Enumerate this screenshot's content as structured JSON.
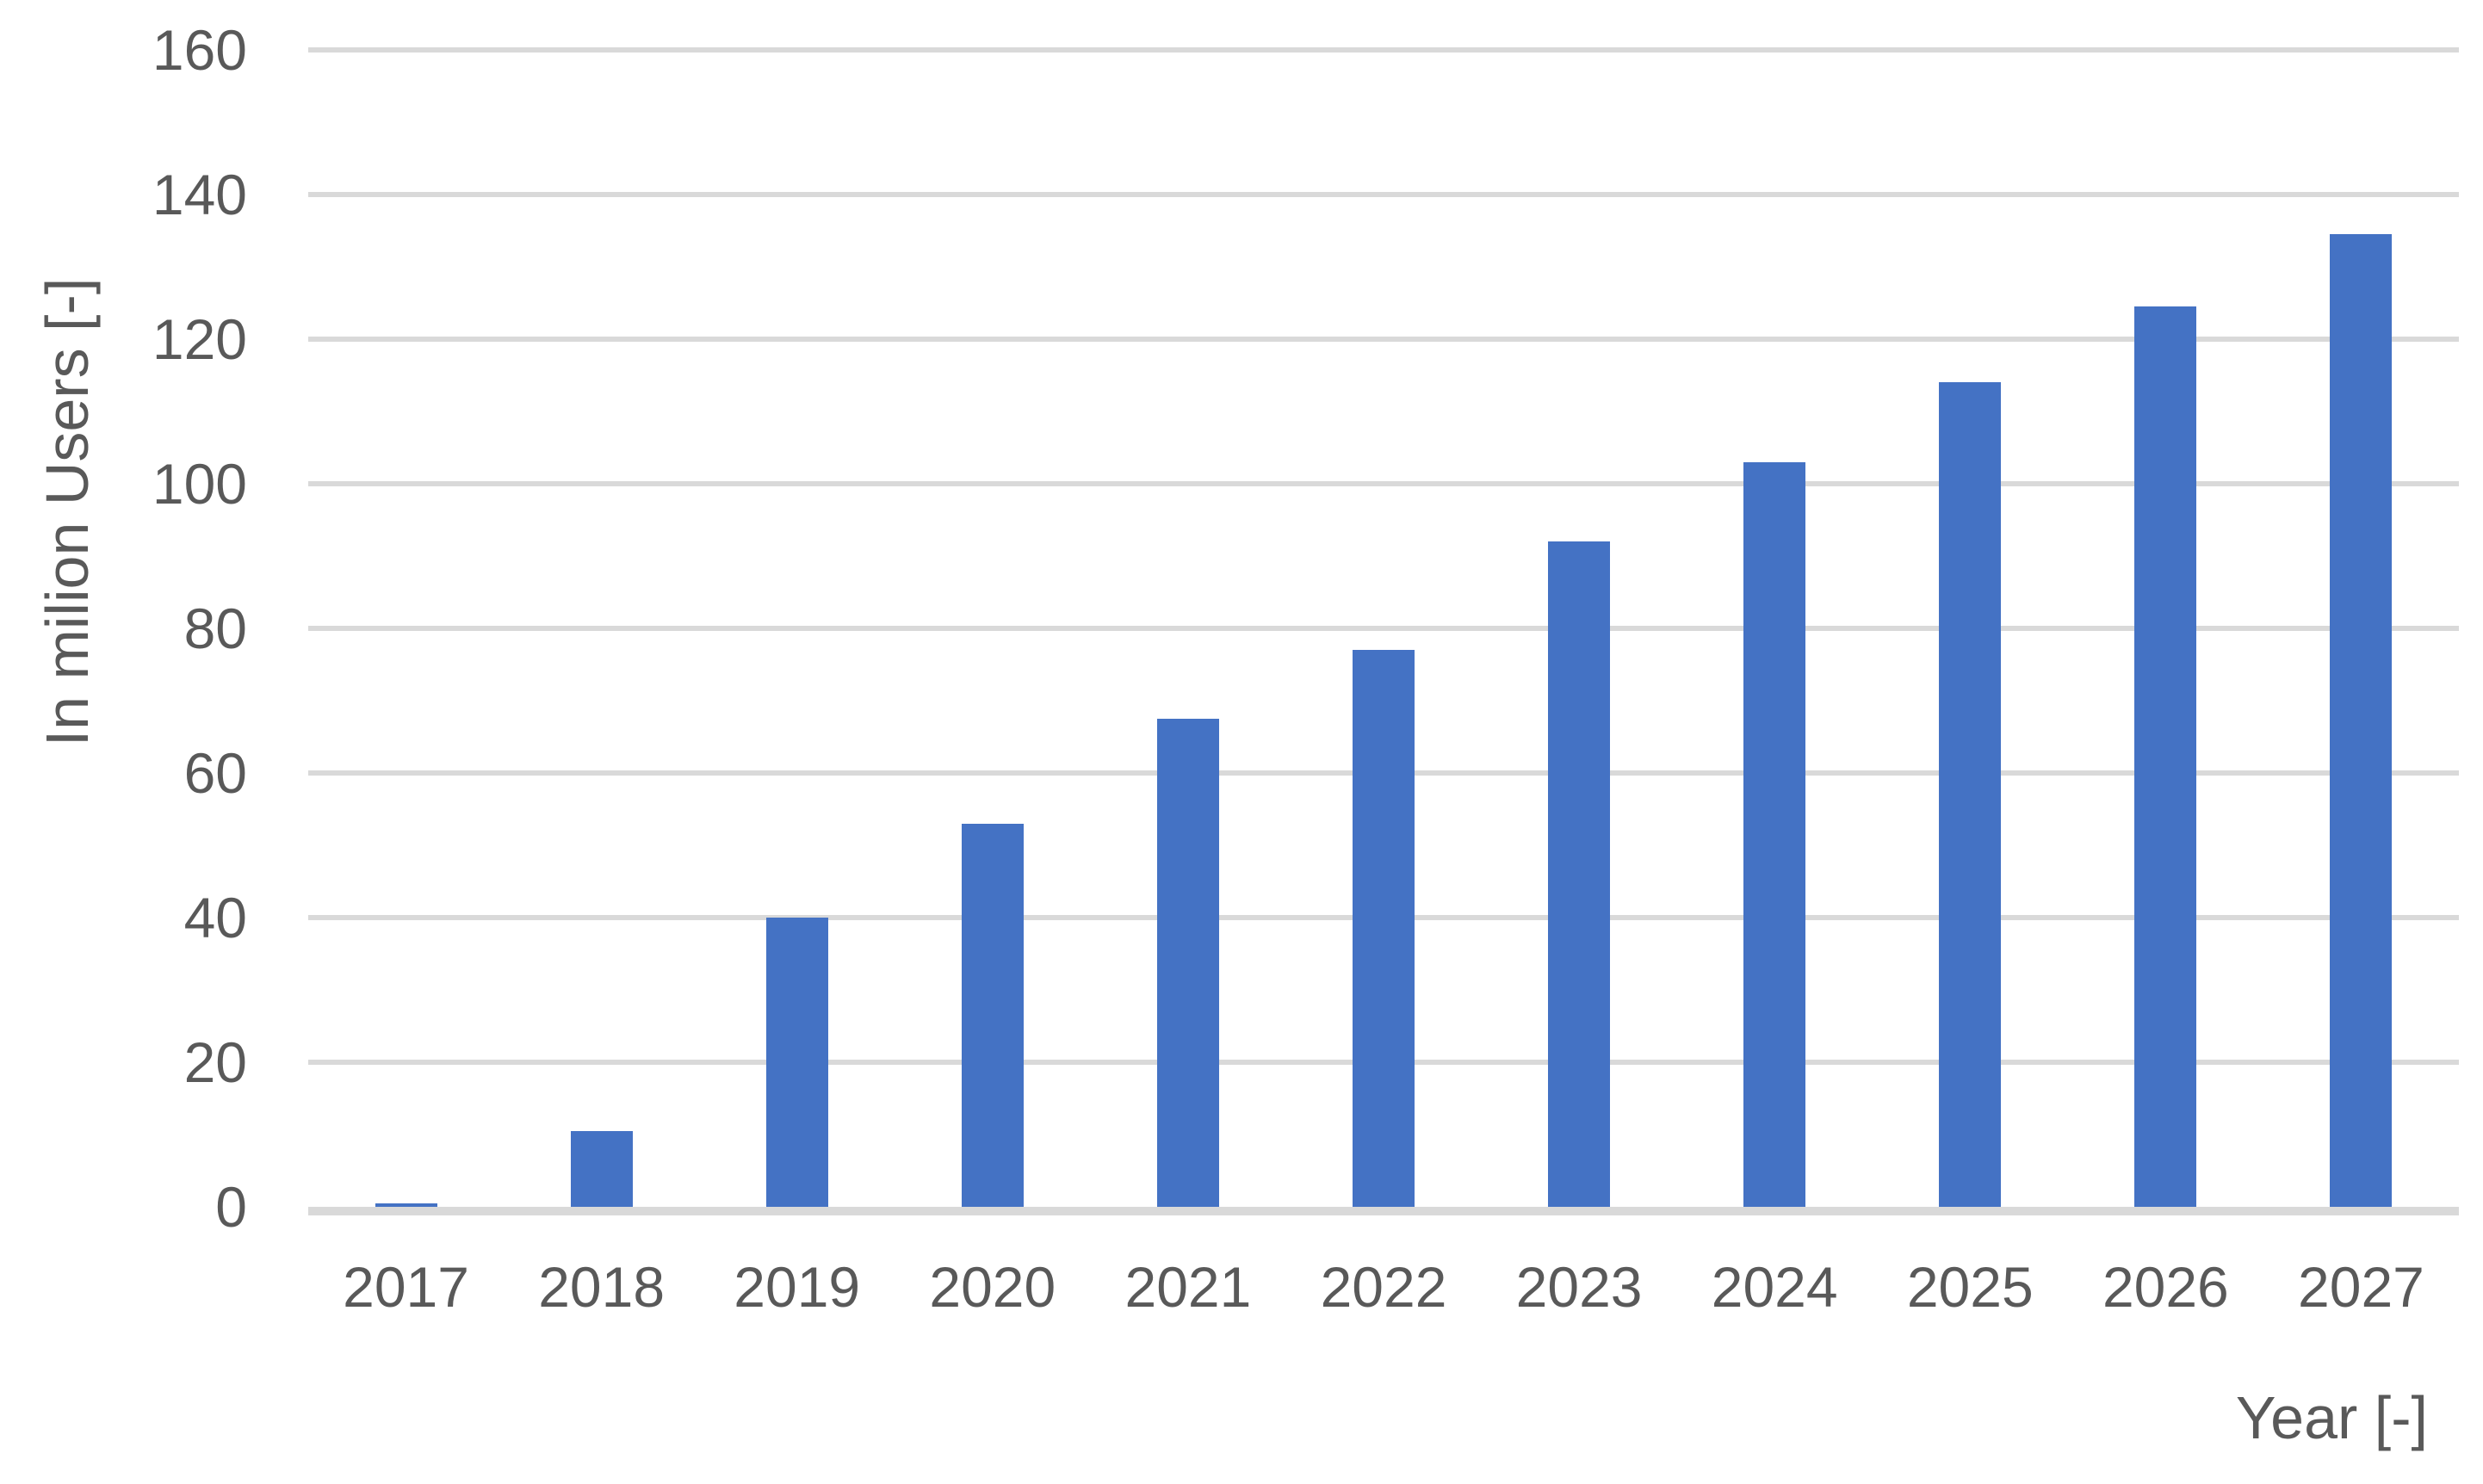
{
  "chart_data": {
    "type": "bar",
    "title": "",
    "categories": [
      "2017",
      "2018",
      "2019",
      "2020",
      "2021",
      "2022",
      "2023",
      "2024",
      "2025",
      "2026",
      "2027"
    ],
    "values": [
      0.5,
      10.5,
      40,
      53,
      67.5,
      77,
      92,
      103,
      114,
      124.5,
      134.5
    ],
    "series_name": "Users",
    "xlabel": "Year [-]",
    "ylabel": "In milion Users [-]",
    "ylim": [
      0,
      160
    ],
    "yticks": [
      0,
      20,
      40,
      60,
      80,
      100,
      120,
      140,
      160
    ],
    "grid": true,
    "legend_position": "none",
    "colors": {
      "bar": "#4472C4",
      "gridline": "#D9D9D9",
      "axis_line": "#D9D9D9",
      "text": "#595959",
      "background": "#FFFFFF"
    }
  }
}
